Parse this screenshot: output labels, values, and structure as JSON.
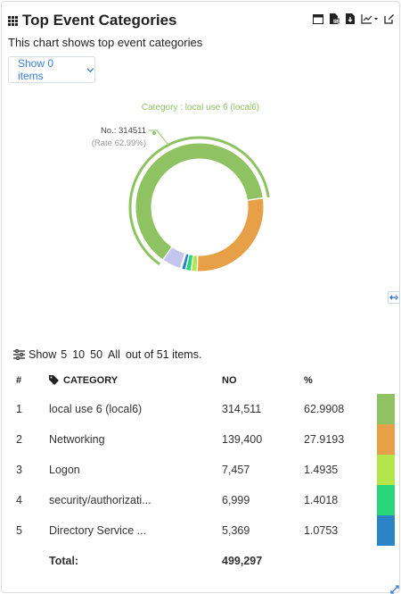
{
  "widget": {
    "title": "Top Event Categories",
    "subtitle": "This chart shows top event categories",
    "show_button": "Show 0 items",
    "toolbar": [
      "window-icon",
      "export-pdf-icon",
      "download-icon",
      "chart-type-icon",
      "edit-icon"
    ]
  },
  "chart_data": {
    "type": "pie",
    "donut": true,
    "selected": "local use 6 (local6)",
    "tooltip": {
      "header": "Category : local use 6 (local6)",
      "count_line": "No.: 314511",
      "rate_line": "(Rate 62.99%)"
    },
    "slices": [
      {
        "label": "local use 6 (local6)",
        "value": 314511,
        "color": "#8fc262"
      },
      {
        "label": "Networking",
        "value": 139400,
        "color": "#e8a048"
      },
      {
        "label": "Logon",
        "value": 7457,
        "color": "#b3e64a"
      },
      {
        "label": "security/authorizati...",
        "value": 6999,
        "color": "#2bd67b"
      },
      {
        "label": "Directory Service ...",
        "value": 5369,
        "color": "#2b84c5"
      },
      {
        "label": "",
        "value": 1400,
        "color": "#2e5c8f"
      },
      {
        "label": "",
        "value": 24161,
        "color": "#c5c6ee"
      }
    ]
  },
  "pager": {
    "show_label": "Show",
    "options": [
      "5",
      "10",
      "50",
      "All"
    ],
    "summary": "out of 51 items."
  },
  "table": {
    "headers": [
      "#",
      "CATEGORY",
      "NO",
      "%"
    ],
    "rows": [
      {
        "idx": "1",
        "category": "local use 6 (local6)",
        "no": "314,511",
        "pct": "62.9908",
        "color": "#8fc262"
      },
      {
        "idx": "2",
        "category": "Networking",
        "no": "139,400",
        "pct": "27.9193",
        "color": "#e8a048"
      },
      {
        "idx": "3",
        "category": "Logon",
        "no": "7,457",
        "pct": "1.4935",
        "color": "#b3e64a"
      },
      {
        "idx": "4",
        "category": "security/authorizati...",
        "no": "6,999",
        "pct": "1.4018",
        "color": "#2bd67b"
      },
      {
        "idx": "5",
        "category": "Directory Service ...",
        "no": "5,369",
        "pct": "1.0753",
        "color": "#2b84c5"
      }
    ],
    "total_label": "Total:",
    "total_value": "499,297"
  }
}
